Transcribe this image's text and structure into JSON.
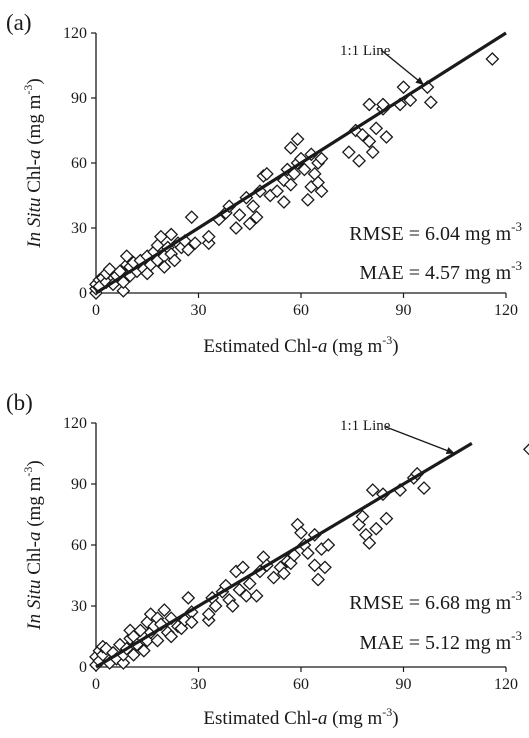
{
  "chart_data": [
    {
      "type": "scatter",
      "panel_label": "(a)",
      "xlabel": {
        "base": "Estimated Chl-",
        "italic": "a",
        "unit": " (mg m",
        "exp": "-3",
        "close": ")"
      },
      "ylabel": {
        "italic": "In Situ",
        "base": " Chl-",
        "italic2": "a",
        "unit": " (mg m",
        "exp": "-3",
        "close": ")"
      },
      "xlim": [
        0,
        120
      ],
      "ylim": [
        0,
        120
      ],
      "xticks": [
        0,
        30,
        60,
        90,
        120
      ],
      "yticks": [
        0,
        30,
        60,
        90,
        120
      ],
      "reference_line": {
        "label": "1:1 Line",
        "x_end": 120,
        "arrow_at": 96
      },
      "stats": [
        {
          "label": "RMSE = 6.04 mg m",
          "exp": "-3"
        },
        {
          "label": "MAE = 4.57 mg m",
          "exp": "-3"
        }
      ],
      "points": [
        [
          0,
          0
        ],
        [
          0,
          2
        ],
        [
          0,
          4
        ],
        [
          1,
          6
        ],
        [
          1,
          3
        ],
        [
          2,
          7
        ],
        [
          3,
          5
        ],
        [
          3,
          9
        ],
        [
          4,
          11
        ],
        [
          5,
          4
        ],
        [
          6,
          8
        ],
        [
          7,
          10
        ],
        [
          8,
          1
        ],
        [
          8,
          5
        ],
        [
          9,
          13
        ],
        [
          9,
          17
        ],
        [
          10,
          8
        ],
        [
          10,
          12
        ],
        [
          11,
          14
        ],
        [
          12,
          10
        ],
        [
          13,
          15
        ],
        [
          14,
          11
        ],
        [
          15,
          17
        ],
        [
          15,
          9
        ],
        [
          16,
          13
        ],
        [
          17,
          19
        ],
        [
          18,
          15
        ],
        [
          18,
          22
        ],
        [
          19,
          26
        ],
        [
          20,
          17
        ],
        [
          20,
          12
        ],
        [
          21,
          21
        ],
        [
          22,
          18
        ],
        [
          22,
          27
        ],
        [
          23,
          15
        ],
        [
          24,
          23
        ],
        [
          25,
          21
        ],
        [
          26,
          24
        ],
        [
          27,
          20
        ],
        [
          28,
          35
        ],
        [
          29,
          23
        ],
        [
          33,
          23
        ],
        [
          33,
          26
        ],
        [
          36,
          34
        ],
        [
          38,
          37
        ],
        [
          39,
          40
        ],
        [
          41,
          30
        ],
        [
          42,
          36
        ],
        [
          44,
          44
        ],
        [
          45,
          32
        ],
        [
          46,
          40
        ],
        [
          47,
          35
        ],
        [
          48,
          47
        ],
        [
          49,
          54
        ],
        [
          50,
          55
        ],
        [
          51,
          45
        ],
        [
          53,
          47
        ],
        [
          55,
          42
        ],
        [
          55,
          52
        ],
        [
          56,
          57
        ],
        [
          57,
          50
        ],
        [
          57,
          67
        ],
        [
          58,
          55
        ],
        [
          59,
          71
        ],
        [
          59,
          60
        ],
        [
          60,
          62
        ],
        [
          61,
          57
        ],
        [
          62,
          43
        ],
        [
          63,
          49
        ],
        [
          63,
          64
        ],
        [
          64,
          55
        ],
        [
          65,
          51
        ],
        [
          65,
          60
        ],
        [
          66,
          47
        ],
        [
          66,
          62
        ],
        [
          74,
          65
        ],
        [
          76,
          75
        ],
        [
          77,
          61
        ],
        [
          78,
          73
        ],
        [
          80,
          70
        ],
        [
          80,
          87
        ],
        [
          81,
          65
        ],
        [
          82,
          76
        ],
        [
          84,
          85
        ],
        [
          84,
          87
        ],
        [
          85,
          72
        ],
        [
          89,
          87
        ],
        [
          90,
          95
        ],
        [
          92,
          89
        ],
        [
          97,
          95
        ],
        [
          98,
          88
        ],
        [
          116,
          108
        ]
      ]
    },
    {
      "type": "scatter",
      "panel_label": "(b)",
      "xlabel": {
        "base": "Estimated Chl-",
        "italic": "a",
        "unit": " (mg m",
        "exp": "-3",
        "close": ")"
      },
      "ylabel": {
        "italic": "In Situ",
        "base": " Chl-",
        "italic2": "a",
        "unit": " (mg m",
        "exp": "-3",
        "close": ")"
      },
      "xlim": [
        0,
        120
      ],
      "ylim": [
        0,
        120
      ],
      "xticks": [
        0,
        30,
        60,
        90,
        120
      ],
      "yticks": [
        0,
        30,
        60,
        90,
        120
      ],
      "reference_line": {
        "label": "1:1 Line",
        "x_end": 110,
        "arrow_at": 105
      },
      "stats": [
        {
          "label": "RMSE = 6.68 mg m",
          "exp": "-3"
        },
        {
          "label": "MAE = 5.12 mg m",
          "exp": "-3"
        }
      ],
      "points": [
        [
          0,
          1
        ],
        [
          0,
          5
        ],
        [
          1,
          3
        ],
        [
          1,
          8
        ],
        [
          2,
          6
        ],
        [
          2,
          10
        ],
        [
          3,
          9
        ],
        [
          4,
          2
        ],
        [
          5,
          7
        ],
        [
          6,
          4
        ],
        [
          7,
          11
        ],
        [
          8,
          2
        ],
        [
          8,
          6
        ],
        [
          9,
          9
        ],
        [
          10,
          14
        ],
        [
          10,
          18
        ],
        [
          11,
          6
        ],
        [
          11,
          15
        ],
        [
          12,
          11
        ],
        [
          13,
          18
        ],
        [
          14,
          8
        ],
        [
          15,
          13
        ],
        [
          15,
          22
        ],
        [
          16,
          26
        ],
        [
          16,
          17
        ],
        [
          17,
          20
        ],
        [
          18,
          13
        ],
        [
          18,
          24
        ],
        [
          19,
          21
        ],
        [
          20,
          28
        ],
        [
          21,
          17
        ],
        [
          22,
          24
        ],
        [
          22,
          15
        ],
        [
          24,
          20
        ],
        [
          25,
          19
        ],
        [
          26,
          23
        ],
        [
          27,
          34
        ],
        [
          28,
          27
        ],
        [
          28,
          22
        ],
        [
          33,
          23
        ],
        [
          33,
          26
        ],
        [
          34,
          34
        ],
        [
          35,
          30
        ],
        [
          37,
          37
        ],
        [
          38,
          40
        ],
        [
          39,
          33
        ],
        [
          40,
          30
        ],
        [
          41,
          47
        ],
        [
          42,
          38
        ],
        [
          43,
          49
        ],
        [
          44,
          35
        ],
        [
          45,
          41
        ],
        [
          47,
          35
        ],
        [
          48,
          47
        ],
        [
          49,
          54
        ],
        [
          50,
          50
        ],
        [
          52,
          44
        ],
        [
          54,
          49
        ],
        [
          55,
          46
        ],
        [
          56,
          52
        ],
        [
          57,
          51
        ],
        [
          58,
          55
        ],
        [
          59,
          70
        ],
        [
          60,
          66
        ],
        [
          61,
          60
        ],
        [
          62,
          56
        ],
        [
          64,
          50
        ],
        [
          64,
          65
        ],
        [
          65,
          43
        ],
        [
          66,
          58
        ],
        [
          67,
          49
        ],
        [
          68,
          60
        ],
        [
          77,
          70
        ],
        [
          78,
          74
        ],
        [
          79,
          65
        ],
        [
          80,
          61
        ],
        [
          81,
          87
        ],
        [
          82,
          68
        ],
        [
          84,
          85
        ],
        [
          85,
          73
        ],
        [
          89,
          87
        ],
        [
          93,
          93
        ],
        [
          94,
          95
        ],
        [
          96,
          88
        ],
        [
          127,
          107
        ]
      ]
    }
  ]
}
